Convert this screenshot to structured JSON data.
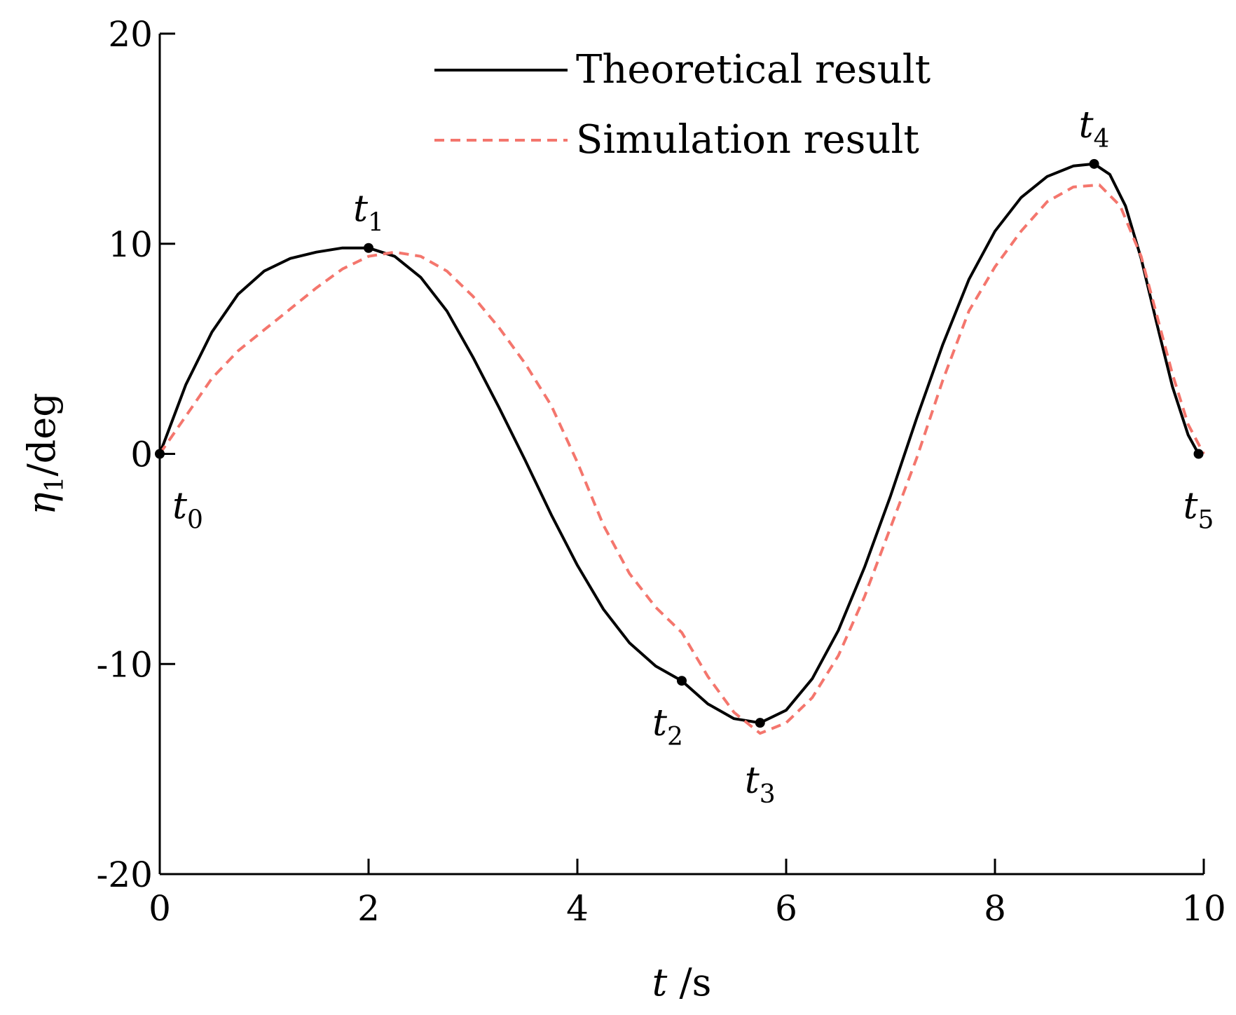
{
  "chart_data": {
    "type": "line",
    "title": "",
    "xlabel": {
      "var": "t",
      "unit": "/s"
    },
    "ylabel": {
      "var": "η",
      "sub": "1",
      "unit": "/deg"
    },
    "xlim": [
      0,
      10
    ],
    "ylim": [
      -20,
      20
    ],
    "xticks": [
      0,
      2,
      4,
      6,
      8,
      10
    ],
    "yticks": [
      -20,
      -10,
      0,
      10,
      20
    ],
    "grid": false,
    "legend_position": "top-right",
    "series": [
      {
        "name": "Theoretical result",
        "color": "#000000",
        "dash": "solid",
        "x": [
          0,
          0.25,
          0.5,
          0.75,
          1.0,
          1.25,
          1.5,
          1.75,
          2.0,
          2.25,
          2.5,
          2.75,
          3.0,
          3.25,
          3.5,
          3.75,
          4.0,
          4.25,
          4.5,
          4.75,
          5.0,
          5.25,
          5.5,
          5.75,
          6.0,
          6.25,
          6.5,
          6.75,
          7.0,
          7.25,
          7.5,
          7.75,
          8.0,
          8.25,
          8.5,
          8.75,
          8.95,
          9.1,
          9.25,
          9.4,
          9.55,
          9.7,
          9.85,
          9.95
        ],
        "y": [
          0,
          3.3,
          5.8,
          7.6,
          8.7,
          9.3,
          9.6,
          9.8,
          9.8,
          9.4,
          8.4,
          6.8,
          4.6,
          2.2,
          -0.3,
          -2.9,
          -5.3,
          -7.4,
          -9.0,
          -10.1,
          -10.8,
          -11.9,
          -12.6,
          -12.8,
          -12.2,
          -10.7,
          -8.4,
          -5.4,
          -2.0,
          1.7,
          5.2,
          8.3,
          10.6,
          12.2,
          13.2,
          13.7,
          13.8,
          13.3,
          11.8,
          9.3,
          6.2,
          3.2,
          0.9,
          0
        ],
        "markers": [
          {
            "x": 0,
            "y": 0,
            "label": "t",
            "sub": "0"
          },
          {
            "x": 2.0,
            "y": 9.8,
            "label": "t",
            "sub": "1"
          },
          {
            "x": 5.0,
            "y": -10.8,
            "label": "t",
            "sub": "2"
          },
          {
            "x": 5.75,
            "y": -12.8,
            "label": "t",
            "sub": "3"
          },
          {
            "x": 8.95,
            "y": 13.8,
            "label": "t",
            "sub": "4"
          },
          {
            "x": 9.95,
            "y": 0,
            "label": "t",
            "sub": "5"
          }
        ]
      },
      {
        "name": "Simulation result",
        "color": "#f4766d",
        "dash": "dashed",
        "x": [
          0,
          0.25,
          0.5,
          0.75,
          1.0,
          1.25,
          1.5,
          1.75,
          2.0,
          2.25,
          2.5,
          2.75,
          3.0,
          3.25,
          3.5,
          3.75,
          4.0,
          4.25,
          4.5,
          4.75,
          5.0,
          5.25,
          5.5,
          5.75,
          6.0,
          6.25,
          6.5,
          6.75,
          7.0,
          7.25,
          7.5,
          7.75,
          8.0,
          8.25,
          8.5,
          8.75,
          9.0,
          9.2,
          9.4,
          9.55,
          9.7,
          9.85,
          10.0
        ],
        "y": [
          0,
          1.8,
          3.6,
          4.9,
          5.9,
          6.9,
          7.9,
          8.8,
          9.4,
          9.6,
          9.4,
          8.7,
          7.5,
          6.0,
          4.3,
          2.3,
          -0.4,
          -3.4,
          -5.7,
          -7.3,
          -8.5,
          -10.6,
          -12.3,
          -13.3,
          -12.8,
          -11.6,
          -9.6,
          -6.8,
          -3.5,
          -0.2,
          3.5,
          6.8,
          8.9,
          10.6,
          12.0,
          12.7,
          12.8,
          11.8,
          9.4,
          6.6,
          3.8,
          1.4,
          0
        ]
      }
    ]
  }
}
